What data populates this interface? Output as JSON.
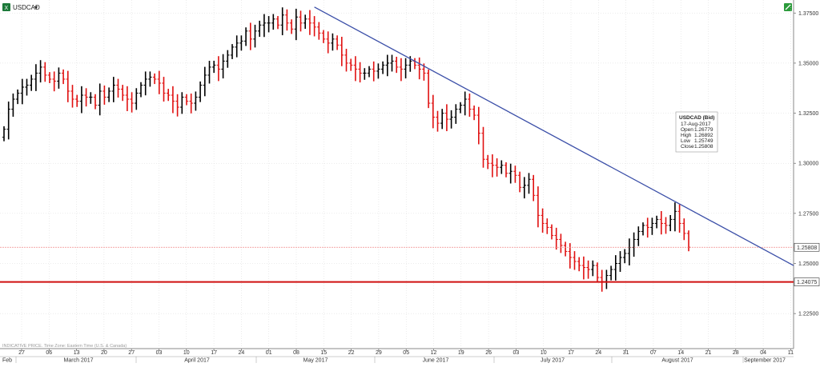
{
  "toolbar": {
    "symbol": "USDCAD",
    "dropdown_glyph": "▾",
    "app_icon": "excel-icon",
    "trend_icon": "trendline-tool-icon"
  },
  "footnote": "INDICATIVE PRICE. Time Zone: Eastern Time (U.S. & Canada)",
  "colors": {
    "up": "#000000",
    "down": "#e01010",
    "trendline": "#3b4fa8",
    "support": "#d01010",
    "last_price_line": "#f08a8a",
    "grid": "#d8d8d8",
    "background": "#ffffff"
  },
  "chart_data": {
    "type": "ohlc",
    "title": "",
    "symbol": "USDCAD",
    "y_ticks": [
      "1.37500",
      "1.35000",
      "1.32500",
      "1.30000",
      "1.27500",
      "1.25000",
      "1.22500"
    ],
    "ylim": [
      1.2075,
      1.3815
    ],
    "grid": true,
    "x_day_ticks": [
      "27",
      "06",
      "13",
      "20",
      "27",
      "03",
      "10",
      "17",
      "24",
      "01",
      "08",
      "15",
      "22",
      "29",
      "05",
      "12",
      "19",
      "26",
      "03",
      "10",
      "17",
      "24",
      "31",
      "07",
      "14",
      "21",
      "28",
      "04",
      "11"
    ],
    "x_month_labels": [
      "Feb",
      "March 2017",
      "April 2017",
      "May 2017",
      "June 2017",
      "July 2017",
      "August 2017",
      "September 2017"
    ],
    "support_level": {
      "value": 1.24075,
      "label": "1.24075"
    },
    "last_price": {
      "value": 1.25808,
      "label": "1.25808"
    },
    "trendline": {
      "start_bar": 68,
      "start_value": 1.378,
      "end_value": 1.249
    },
    "tooltip": {
      "title": "USDCAD (Bid)",
      "date": "17-Aug-2017",
      "rows": [
        {
          "label": "Open",
          "value": "1.26779"
        },
        {
          "label": "High",
          "value": "1.26892"
        },
        {
          "label": "Low",
          "value": "1.25749"
        },
        {
          "label": "Close",
          "value": "1.25808"
        }
      ]
    },
    "close_series": [
      1.317,
      1.327,
      1.332,
      1.335,
      1.338,
      1.339,
      1.342,
      1.345,
      1.348,
      1.344,
      1.342,
      1.341,
      1.345,
      1.342,
      1.336,
      1.332,
      1.331,
      1.334,
      1.333,
      1.333,
      1.329,
      1.336,
      1.333,
      1.336,
      1.339,
      1.337,
      1.334,
      1.332,
      1.33,
      1.335,
      1.339,
      1.342,
      1.343,
      1.342,
      1.34,
      1.335,
      1.334,
      1.331,
      1.328,
      1.333,
      1.331,
      1.33,
      1.333,
      1.339,
      1.344,
      1.348,
      1.349,
      1.347,
      1.351,
      1.354,
      1.358,
      1.36,
      1.361,
      1.366,
      1.362,
      1.366,
      1.369,
      1.37,
      1.37,
      1.372,
      1.369,
      1.374,
      1.37,
      1.367,
      1.373,
      1.37,
      1.372,
      1.37,
      1.368,
      1.365,
      1.362,
      1.36,
      1.362,
      1.359,
      1.354,
      1.35,
      1.349,
      1.347,
      1.345,
      1.345,
      1.347,
      1.346,
      1.347,
      1.349,
      1.35,
      1.351,
      1.348,
      1.347,
      1.349,
      1.351,
      1.349,
      1.347,
      1.345,
      1.33,
      1.323,
      1.32,
      1.325,
      1.322,
      1.323,
      1.327,
      1.329,
      1.332,
      1.327,
      1.324,
      1.315,
      1.302,
      1.3,
      1.299,
      1.298,
      1.299,
      1.295,
      1.296,
      1.294,
      1.288,
      1.289,
      1.292,
      1.284,
      1.274,
      1.27,
      1.268,
      1.264,
      1.262,
      1.259,
      1.256,
      1.253,
      1.251,
      1.249,
      1.248,
      1.247,
      1.249,
      1.243,
      1.241,
      1.244,
      1.247,
      1.25,
      1.253,
      1.255,
      1.258,
      1.262,
      1.266,
      1.269,
      1.268,
      1.27,
      1.272,
      1.27,
      1.269,
      1.272,
      1.276,
      1.27,
      1.265,
      1.2581
    ]
  }
}
